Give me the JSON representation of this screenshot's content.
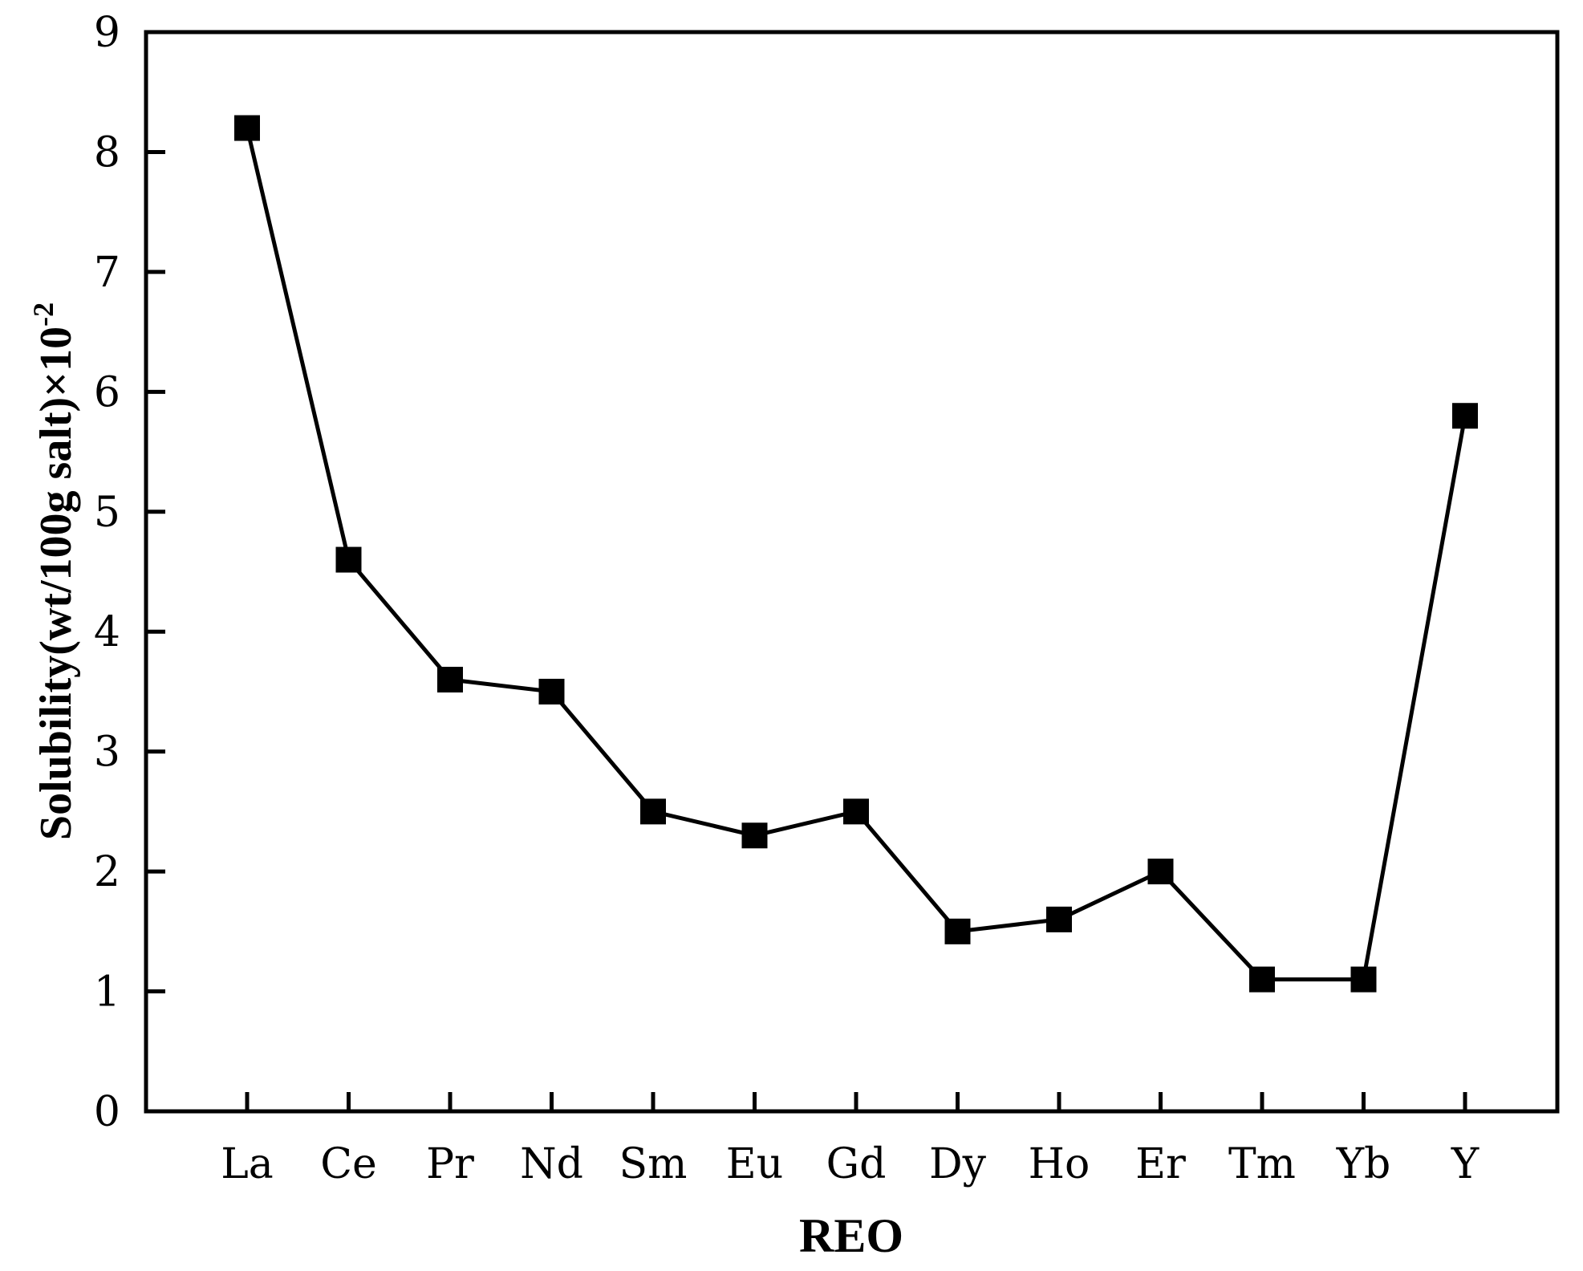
{
  "chart_data": {
    "type": "line",
    "categories": [
      "La",
      "Ce",
      "Pr",
      "Nd",
      "Sm",
      "Eu",
      "Gd",
      "Dy",
      "Ho",
      "Er",
      "Tm",
      "Yb",
      "Y"
    ],
    "series": [
      {
        "values": [
          8.2,
          4.6,
          3.6,
          3.5,
          2.5,
          2.3,
          2.5,
          1.5,
          1.6,
          2.0,
          1.1,
          1.1,
          5.8
        ]
      }
    ],
    "xlabel": "REO",
    "ylabel": "Solubility(wt/100g salt)×10",
    "ylabel_superscript": "-2",
    "ylim": [
      0,
      9
    ],
    "yticks": [
      "0",
      "1",
      "2",
      "3",
      "4",
      "5",
      "6",
      "7",
      "8",
      "9"
    ],
    "grid": false,
    "marker": "square",
    "colors": {
      "line": "#000000",
      "marker": "#000000",
      "axis": "#000000"
    }
  }
}
